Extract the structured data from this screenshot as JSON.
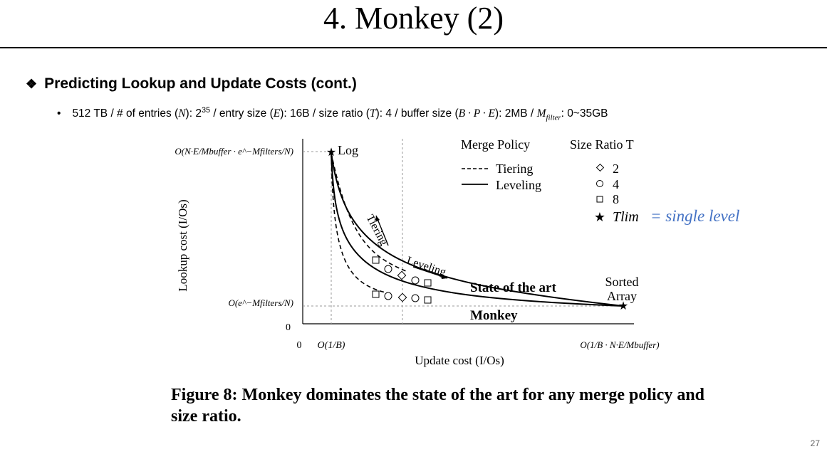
{
  "slide": {
    "title": "4. Monkey (2)",
    "section_bullet": "❖",
    "section_heading": "Predicting Lookup and Update Costs (cont.)",
    "bullet_marker": "•",
    "param_line": {
      "p1": "512 TB / # of entries (",
      "N": "N",
      "p2": "): 2",
      "exp": "35",
      "p3": " / entry size (",
      "E": "E",
      "p4": "): 16B / size ratio (",
      "T": "T",
      "p5": "): 4 / buffer size (",
      "BPE": "B · P · E",
      "p6": "): 2MB / ",
      "M": "M",
      "Msub": "filter",
      "p7": ": 0~35GB"
    },
    "page_number": "27"
  },
  "figure": {
    "y_axis_label": "Lookup cost (I/Os)",
    "x_axis_label": "Update cost (I/Os)",
    "y_top_label": "O(N·E/Mbuffer · e^−Mfilters/N)",
    "y_mid_label": "O(e^−Mfilters/N)",
    "y_zero": "0",
    "x_zero": "0",
    "x_tick_1": "O(1/B)",
    "x_tick_end": "O(1/B · N·E/Mbuffer)",
    "point_log": "Log",
    "point_sorted_line1": "Sorted",
    "point_sorted_line2": "Array",
    "arrow_tiering": "Tiering",
    "arrow_leveling": "Leveling",
    "label_state_of_art": "State of the art",
    "label_monkey": "Monkey",
    "legend_merge_title": "Merge Policy",
    "legend_merge_tiering": "Tiering",
    "legend_merge_leveling": "Leveling",
    "legend_size_title": "Size Ratio T",
    "legend_size_2": "2",
    "legend_size_4": "4",
    "legend_size_8": "8",
    "legend_size_lim": "Tlim",
    "legend_size_lim_note": "= single level",
    "accent_color": "#4472c4"
  },
  "caption": "Figure 8: Monkey dominates the state of the art for any merge policy and size ratio."
}
